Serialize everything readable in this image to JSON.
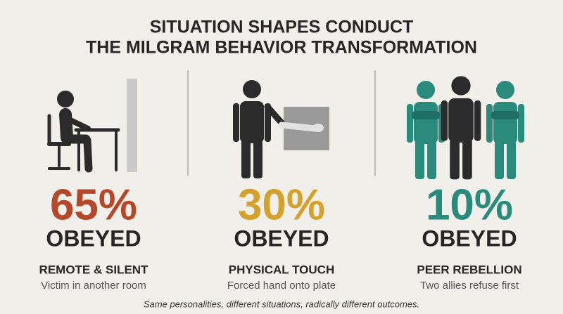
{
  "title": [
    "SITUATION SHAPES CONDUCT",
    "THE MILGRAM BEHAVIOR TRANSFORMATION"
  ],
  "panels": [
    {
      "percent": "65%",
      "outcome": "OBEYED",
      "heading": "REMOTE & SILENT",
      "description": "Victim in another room"
    },
    {
      "percent": "30%",
      "outcome": "OBEYED",
      "heading": "PHYSICAL TOUCH",
      "description": "Forced hand onto plate"
    },
    {
      "percent": "10%",
      "outcome": "OBEYED",
      "heading": "PEER REBELLION",
      "description": "Two allies refuse first"
    }
  ],
  "footnote": "Same personalities, different situations, radically different outcomes."
}
